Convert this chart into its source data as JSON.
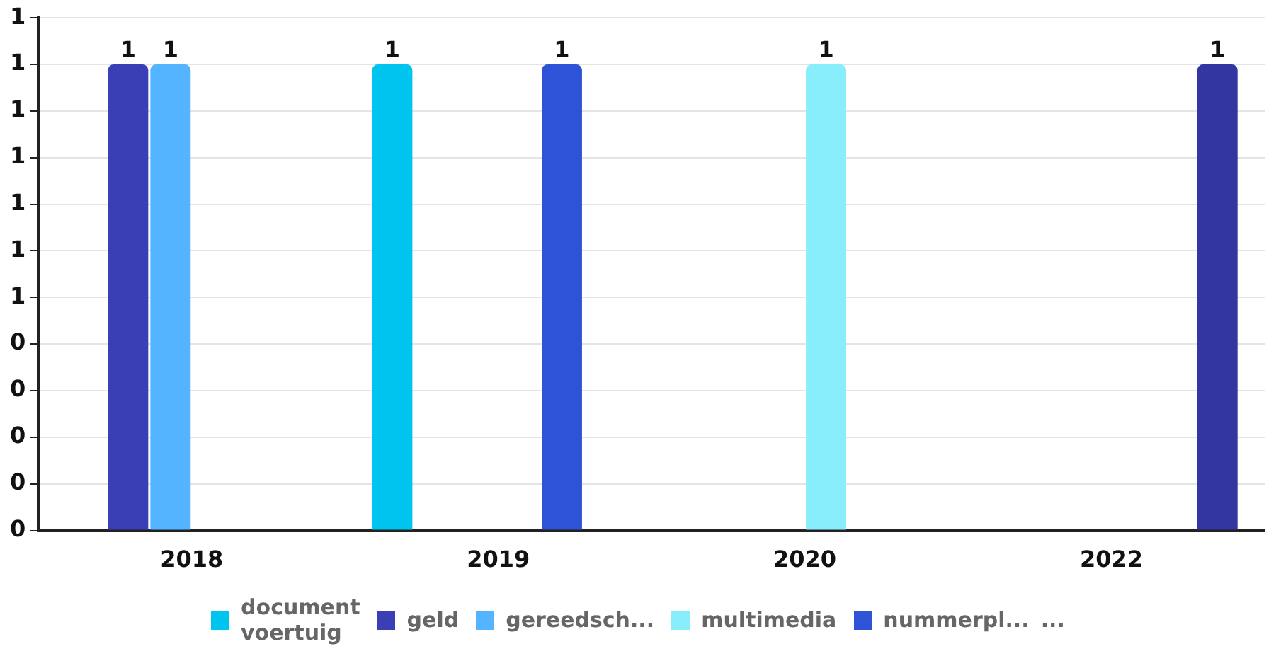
{
  "chart_data": {
    "type": "bar",
    "categories": [
      "2018",
      "2019",
      "2020",
      "2022"
    ],
    "series": [
      {
        "name": "document voertuig",
        "color": "#00c4f0",
        "values": [
          null,
          1,
          null,
          null
        ]
      },
      {
        "name": "geld",
        "color": "#3a3fb5",
        "values": [
          1,
          null,
          null,
          null
        ]
      },
      {
        "name": "gereedsch...",
        "color": "#55b4ff",
        "values": [
          1,
          null,
          null,
          null
        ]
      },
      {
        "name": "multimedia",
        "color": "#88eefc",
        "values": [
          null,
          null,
          1,
          null
        ]
      },
      {
        "name": "nummerpl...",
        "color": "#2f53d6",
        "values": [
          null,
          1,
          null,
          null
        ]
      },
      {
        "color": "#3336a0",
        "values": [
          null,
          null,
          null,
          1
        ]
      }
    ],
    "ylim": [
      0,
      1.1
    ],
    "yticks": [
      {
        "value": 0,
        "label": "0"
      },
      {
        "value": 0.1,
        "label": "0"
      },
      {
        "value": 0.2,
        "label": "0"
      },
      {
        "value": 0.3,
        "label": "0"
      },
      {
        "value": 0.4,
        "label": "0"
      },
      {
        "value": 0.5,
        "label": "1"
      },
      {
        "value": 0.6,
        "label": "1"
      },
      {
        "value": 0.7,
        "label": "1"
      },
      {
        "value": 0.8,
        "label": "1"
      },
      {
        "value": 0.9,
        "label": "1"
      },
      {
        "value": 1,
        "label": "1"
      },
      {
        "value": 1.1,
        "label": "1"
      }
    ],
    "grid": "y",
    "legend": "bottom",
    "data_labels": true,
    "annotations": [
      "..."
    ]
  }
}
